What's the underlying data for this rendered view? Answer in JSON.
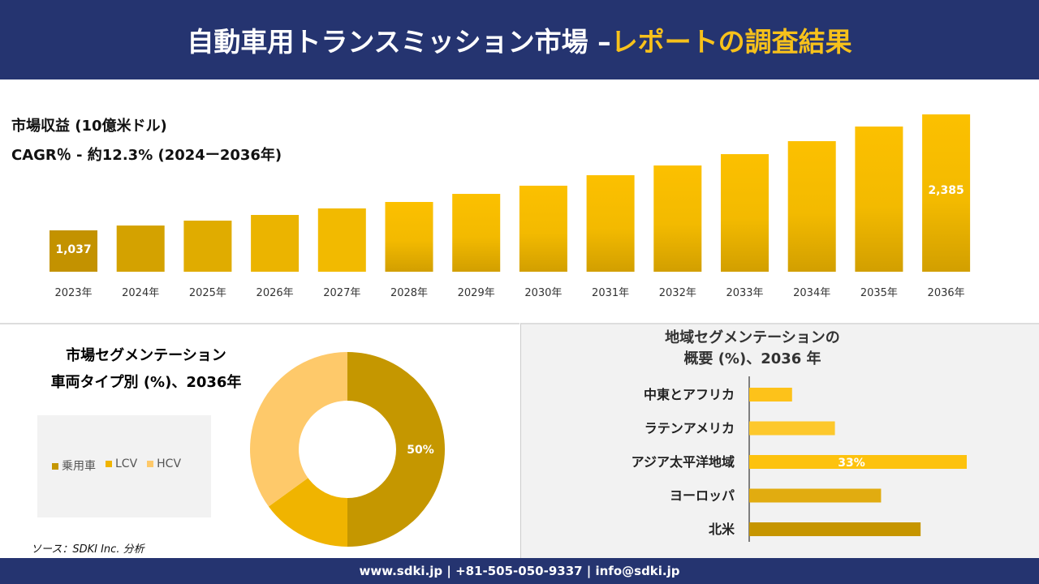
{
  "header": {
    "title_main": "自動車用トランスミッション市場 –",
    "title_accent": "レポートの調査結果"
  },
  "revenue": {
    "label": "市場収益 (10億米ドル)",
    "cagr": "CAGR％ - 約12.3% (2024ー2036年)"
  },
  "chart_data": [
    {
      "type": "bar",
      "categories": [
        "2023年",
        "2024年",
        "2025年",
        "2026年",
        "2027年",
        "2028年",
        "2029年",
        "2030年",
        "2031年",
        "2032年",
        "2033年",
        "2034年",
        "2035年",
        "2036年"
      ],
      "values": [
        1037,
        1093,
        1150,
        1216,
        1292,
        1367,
        1461,
        1556,
        1678,
        1791,
        1923,
        2074,
        2244,
        2385
      ],
      "data_labels": {
        "0": "1,037",
        "13": "2,385"
      },
      "title": "",
      "colors": [
        "#c39200",
        "#d4a200",
        "#e0ac00",
        "#ebb400",
        "#f2ba00",
        "#fcc000"
      ]
    },
    {
      "type": "pie",
      "subtype": "donut",
      "title": "市場セグメンテーション 車両タイプ別 (%)、2036年",
      "categories": [
        "乗用車",
        "LCV",
        "HCV"
      ],
      "values": [
        50,
        15,
        35
      ],
      "colors": [
        "#c59700",
        "#f0b400",
        "#fec96a"
      ],
      "data_labels": {
        "0": "50%"
      },
      "legend": "left"
    },
    {
      "type": "bar",
      "orientation": "horizontal",
      "title": "地域セグメンテーションの 概要 (%)、2036 年",
      "categories": [
        "中東とアフリカ",
        "ラテンアメリカ",
        "アジア太平洋地域",
        "ヨーロッパ",
        "北米"
      ],
      "values": [
        6.5,
        13,
        33,
        20,
        26
      ],
      "colors": [
        "#fdc21a",
        "#fdc82c",
        "#fdc20e",
        "#e1ac10",
        "#c69500"
      ],
      "data_labels": {
        "2": "33%"
      }
    }
  ],
  "pie_title": {
    "line1": "市場セグメンテーション",
    "line2": "車両タイプ別 (%)、2036年"
  },
  "region_title": {
    "line1": "地域セグメンテーションの",
    "line2": "概要 (%)、2036 年"
  },
  "source": "ソース：SDKI Inc. 分析",
  "footer": "www.sdki.jp | +81-505-050-9337 | info@sdki.jp"
}
